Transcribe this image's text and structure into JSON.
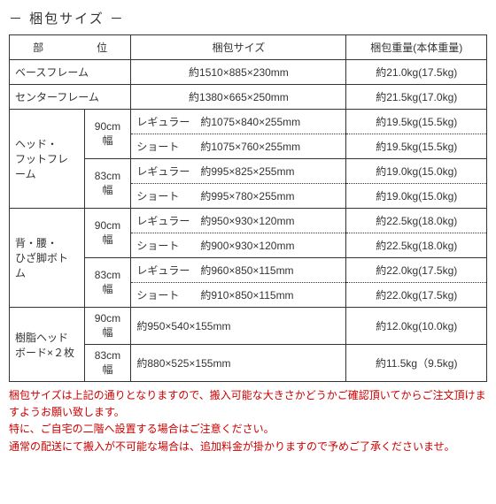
{
  "title": "－  梱包サイズ  －",
  "headers": {
    "part": "部　　位",
    "size": "梱包サイズ",
    "weight": "梱包重量(本体重量)"
  },
  "rows": {
    "base_frame": {
      "part": "ベースフレーム",
      "size": "約1510×885×230mm",
      "weight": "約21.0kg(17.5kg)"
    },
    "center_frame": {
      "part": "センターフレーム",
      "size": "約1380×665×250mm",
      "weight": "約21.5kg(17.0kg)"
    },
    "head_foot": {
      "part": "ヘッド・\nフットフレーム",
      "w90": "90cm幅",
      "w83": "83cm幅",
      "r1": {
        "type": "レギュラー",
        "size": "約1075×840×255mm",
        "weight": "約19.5kg(15.5kg)"
      },
      "r2": {
        "type": "ショート",
        "size": "約1075×760×255mm",
        "weight": "約19.5kg(15.5kg)"
      },
      "r3": {
        "type": "レギュラー",
        "size": "約995×825×255mm",
        "weight": "約19.0kg(15.0kg)"
      },
      "r4": {
        "type": "ショート",
        "size": "約995×780×255mm",
        "weight": "約19.0kg(15.0kg)"
      }
    },
    "back_waist": {
      "part": "背・腰・\nひざ脚ボトム",
      "w90": "90cm幅",
      "w83": "83cm幅",
      "r1": {
        "type": "レギュラー",
        "size": "約950×930×120mm",
        "weight": "約22.5kg(18.0kg)"
      },
      "r2": {
        "type": "ショート",
        "size": "約900×930×120mm",
        "weight": "約22.5kg(18.0kg)"
      },
      "r3": {
        "type": "レギュラー",
        "size": "約960×850×115mm",
        "weight": "約22.0kg(17.5kg)"
      },
      "r4": {
        "type": "ショート",
        "size": "約910×850×115mm",
        "weight": "約22.0kg(17.5kg)"
      }
    },
    "resin_head": {
      "part": "樹脂ヘッド\nボード×２枚",
      "w90": "90cm幅",
      "w83": "83cm幅",
      "r1": {
        "size": "約950×540×155mm",
        "weight": "約12.0kg(10.0kg)"
      },
      "r2": {
        "size": "約880×525×155mm",
        "weight": "約11.5kg（9.5kg)"
      }
    }
  },
  "notice": "梱包サイズは上記の通りとなりますので、搬入可能な大きさかどうかご確認頂いてからご注文頂けますようお願い致します。\n特に、ご自宅の二階へ設置する場合はご注意ください。\n通常の配送にて搬入が不可能な場合は、追加料金が掛かりますので予めご了承くださいませ。",
  "colors": {
    "notice": "#cc0000",
    "border": "#333333",
    "bg": "#ffffff"
  }
}
